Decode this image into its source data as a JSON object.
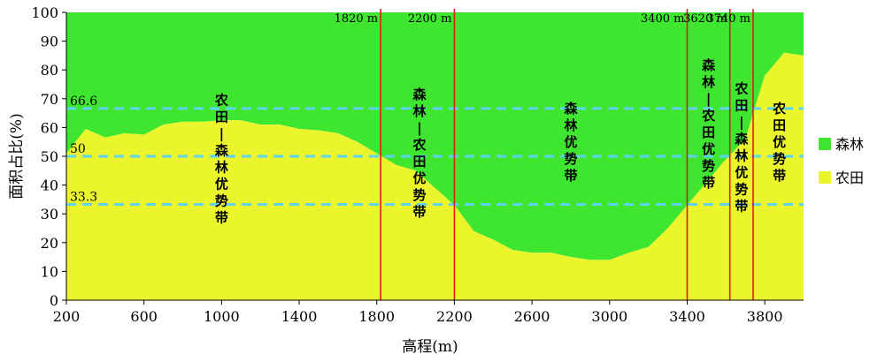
{
  "chart_data": {
    "type": "area",
    "xlabel": "高程(m)",
    "ylabel": "面积占比(%)",
    "xlim": [
      200,
      4000
    ],
    "ylim": [
      0,
      100
    ],
    "xticks": [
      "200",
      "600",
      "1000",
      "1400",
      "1800",
      "2200",
      "2600",
      "3000",
      "3400",
      "3800"
    ],
    "yticks": [
      "0",
      "10",
      "20",
      "30",
      "40",
      "50",
      "60",
      "70",
      "80",
      "90",
      "100"
    ],
    "x": [
      200,
      300,
      400,
      500,
      600,
      700,
      800,
      900,
      1000,
      1100,
      1200,
      1300,
      1400,
      1500,
      1600,
      1700,
      1800,
      1900,
      2000,
      2100,
      2200,
      2300,
      2400,
      2500,
      2600,
      2700,
      2800,
      2900,
      3000,
      3100,
      3200,
      3300,
      3400,
      3500,
      3600,
      3700,
      3800,
      3900,
      4000
    ],
    "series": [
      {
        "name": "农田",
        "color": "#eaf52c",
        "values": [
          51,
          59.5,
          56.5,
          58,
          57.5,
          61,
          62,
          62,
          62.5,
          62.5,
          61,
          61,
          59.5,
          59,
          58,
          55,
          51,
          47,
          45,
          39,
          33,
          24,
          21,
          17.5,
          16.5,
          16.5,
          15,
          14,
          14,
          16.5,
          18.5,
          25,
          33,
          41,
          49,
          56,
          78,
          86,
          85
        ]
      },
      {
        "name": "森林",
        "color": "#3ee630",
        "values": [
          49,
          40.5,
          43.5,
          42,
          42.5,
          39,
          38,
          38,
          37.5,
          37.5,
          39,
          39,
          40.5,
          41,
          42,
          45,
          49,
          53,
          55,
          61,
          67,
          76,
          79,
          82.5,
          83.5,
          83.5,
          85,
          86,
          86,
          83.5,
          81.5,
          75,
          67,
          59,
          51,
          44,
          22,
          14,
          15
        ]
      }
    ],
    "reference_lines": [
      {
        "value": 66.6,
        "label": "66.6"
      },
      {
        "value": 50,
        "label": "50"
      },
      {
        "value": 33.3,
        "label": "33.3"
      }
    ],
    "boundaries": [
      {
        "x": 1820,
        "label": "1820 m"
      },
      {
        "x": 2200,
        "label": "2200 m"
      },
      {
        "x": 3400,
        "label": "3400 m"
      },
      {
        "x": 3620,
        "label": "3620 m"
      },
      {
        "x": 3740,
        "label": "3740 m"
      }
    ],
    "zones": [
      {
        "label": "农田—森林优势带",
        "x": 1000,
        "y": 68
      },
      {
        "label": "森林—农田优势带",
        "x": 2020,
        "y": 70
      },
      {
        "label": "森林优势带",
        "x": 2800,
        "y": 65
      },
      {
        "label": "森林—农田优势带",
        "x": 3510,
        "y": 80
      },
      {
        "label": "农田—森林优势带",
        "x": 3680,
        "y": 72
      },
      {
        "label": "农田优势带",
        "x": 3875,
        "y": 65
      }
    ],
    "legend": {
      "position": "right",
      "entries": [
        "森林",
        "农田"
      ]
    }
  }
}
